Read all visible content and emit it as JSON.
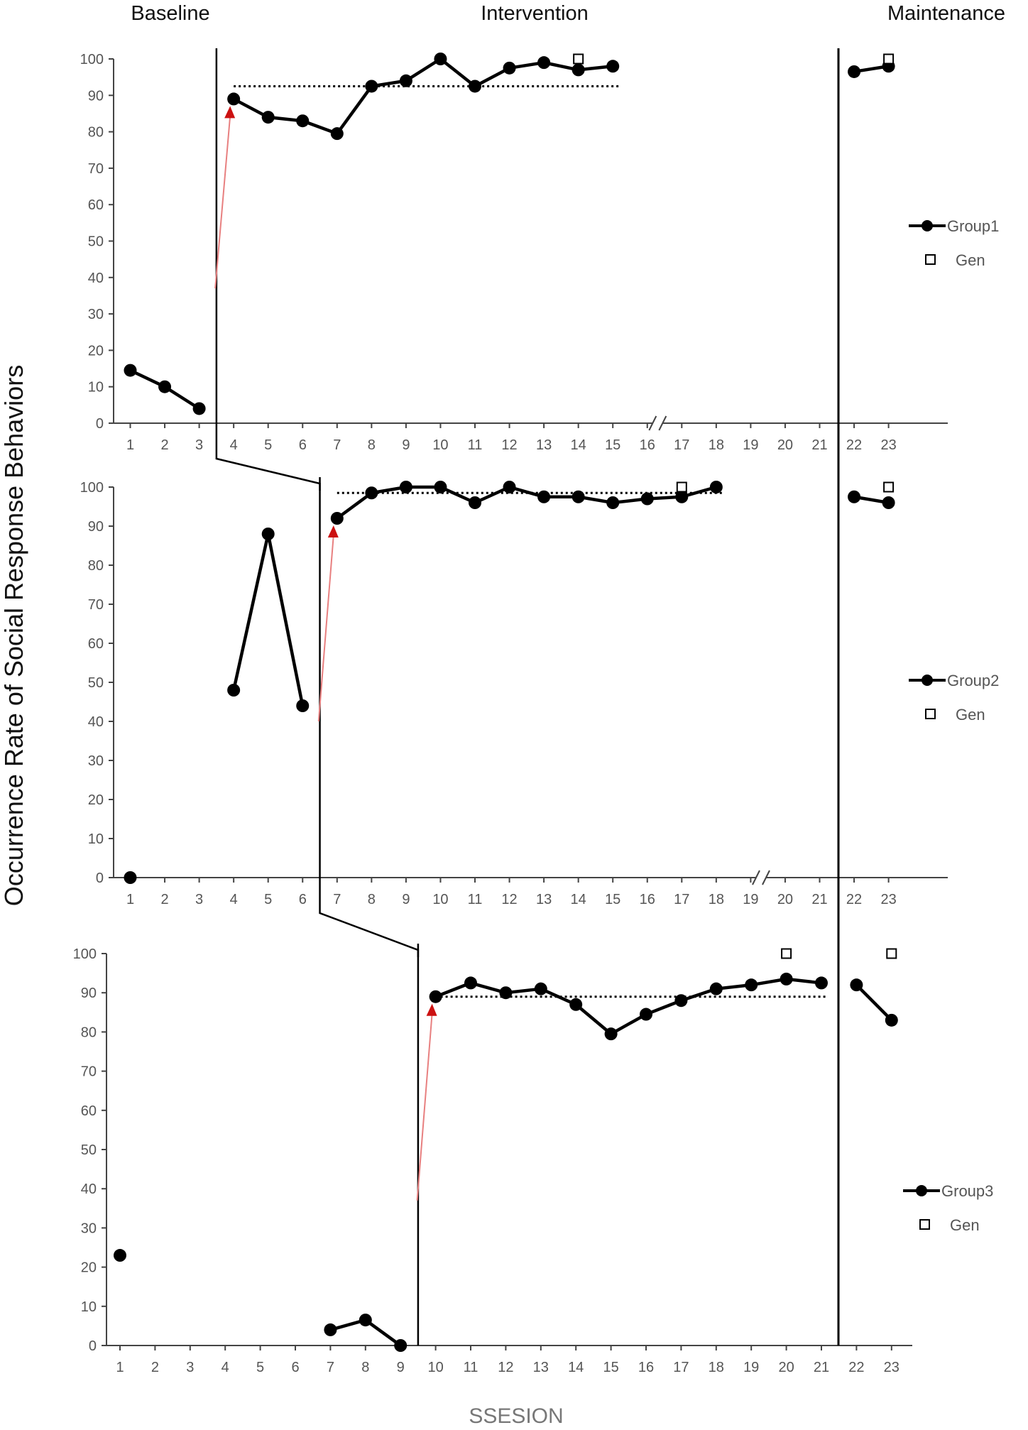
{
  "chart_data": {
    "type": "line",
    "phase_labels": [
      "Baseline",
      "Intervention",
      "Maintenance"
    ],
    "ylabel": "Occurrence Rate of Social Response Behaviors",
    "xlabel": "SSESION",
    "ylim": [
      0,
      100
    ],
    "y_ticks": [
      "0",
      "10",
      "20",
      "30",
      "40",
      "50",
      "60",
      "70",
      "80",
      "90",
      "100"
    ],
    "x_ticks": [
      "1",
      "2",
      "3",
      "4",
      "5",
      "6",
      "7",
      "8",
      "9",
      "10",
      "11",
      "12",
      "13",
      "14",
      "15",
      "16",
      "17",
      "18",
      "19",
      "20",
      "21",
      "22",
      "23"
    ],
    "legend_gen_label": "Gen",
    "panels": [
      {
        "name": "Group1",
        "series_segments": [
          {
            "x": [
              1,
              2,
              3
            ],
            "y": [
              14.5,
              10,
              4
            ]
          },
          {
            "x": [
              4,
              5,
              6,
              7,
              8,
              9,
              10,
              11,
              12,
              13,
              14,
              15
            ],
            "y": [
              89,
              84,
              83,
              79.5,
              92.5,
              94,
              100,
              92.5,
              97.5,
              99,
              97,
              98
            ]
          },
          {
            "x": [
              22,
              23
            ],
            "y": [
              96.5,
              98
            ]
          }
        ],
        "gen": [
          {
            "x": 14,
            "y": 100
          },
          {
            "x": 23,
            "y": 100
          }
        ],
        "trend_line": {
          "x": [
            4,
            15
          ],
          "y": 92.5
        },
        "phase_change_after": 3,
        "intervention_start": 4,
        "axis_break_after": 16
      },
      {
        "name": "Group2",
        "series_segments": [
          {
            "x": [
              1
            ],
            "y": [
              0
            ]
          },
          {
            "x": [
              4,
              5,
              6
            ],
            "y": [
              48,
              88,
              44
            ]
          },
          {
            "x": [
              7,
              8,
              9,
              10,
              11,
              12,
              13,
              14,
              15,
              16,
              17,
              18
            ],
            "y": [
              92,
              98.5,
              100,
              100,
              96,
              100,
              97.5,
              97.5,
              96,
              97,
              97.5,
              100
            ]
          },
          {
            "x": [
              22,
              23
            ],
            "y": [
              97.5,
              96
            ]
          }
        ],
        "gen": [
          {
            "x": 17,
            "y": 100
          },
          {
            "x": 23,
            "y": 100
          }
        ],
        "trend_line": {
          "x": [
            7,
            18
          ],
          "y": 98.5
        },
        "phase_change_after": 6,
        "intervention_start": 7,
        "axis_break_after": 19
      },
      {
        "name": "Group3",
        "series_segments": [
          {
            "x": [
              1
            ],
            "y": [
              23
            ]
          },
          {
            "x": [
              7,
              8,
              9
            ],
            "y": [
              4,
              6.5,
              0
            ]
          },
          {
            "x": [
              10,
              11,
              12,
              13,
              14,
              15,
              16,
              17,
              18,
              19,
              20,
              21
            ],
            "y": [
              89,
              92.5,
              90,
              91,
              87,
              79.5,
              84.5,
              88,
              91,
              92,
              93.5,
              92.5
            ]
          },
          {
            "x": [
              22,
              23
            ],
            "y": [
              92,
              83
            ]
          }
        ],
        "gen": [
          {
            "x": 20,
            "y": 100
          },
          {
            "x": 23,
            "y": 100
          }
        ],
        "trend_line": {
          "x": [
            10,
            21
          ],
          "y": 89
        },
        "phase_change_after": 9,
        "intervention_start": 10,
        "axis_break_after": null
      }
    ]
  },
  "colors": {
    "data": "#000000",
    "axis": "#444444",
    "intervention_arrow": "#e88080",
    "arrow_head": "#cc1111"
  }
}
